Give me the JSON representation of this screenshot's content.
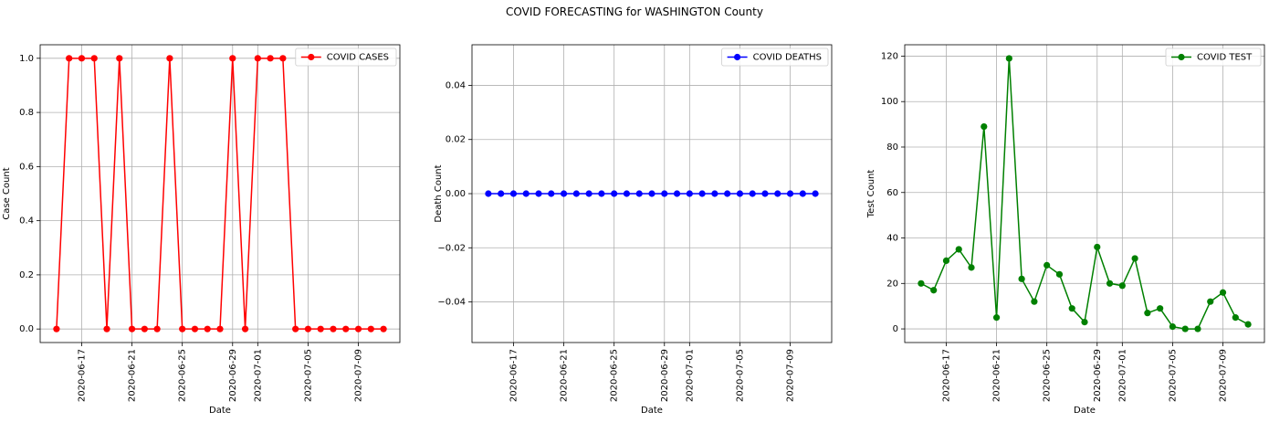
{
  "figure": {
    "title": "COVID FORECASTING for WASHINGTON County"
  },
  "chart_data": [
    {
      "type": "line",
      "title": "",
      "xlabel": "Date",
      "ylabel": "Case Count",
      "x": [
        "2020-06-15",
        "2020-06-16",
        "2020-06-17",
        "2020-06-18",
        "2020-06-19",
        "2020-06-20",
        "2020-06-21",
        "2020-06-22",
        "2020-06-23",
        "2020-06-24",
        "2020-06-25",
        "2020-06-26",
        "2020-06-27",
        "2020-06-28",
        "2020-06-29",
        "2020-06-30",
        "2020-07-01",
        "2020-07-02",
        "2020-07-03",
        "2020-07-04",
        "2020-07-05",
        "2020-07-06",
        "2020-07-07",
        "2020-07-08",
        "2020-07-09",
        "2020-07-10",
        "2020-07-11"
      ],
      "x_ticks": [
        "2020-06-17",
        "2020-06-21",
        "2020-06-25",
        "2020-06-29",
        "2020-07-01",
        "2020-07-05",
        "2020-07-09"
      ],
      "y_ticks": [
        "0.0",
        "0.2",
        "0.4",
        "0.6",
        "0.8",
        "1.0"
      ],
      "ylim": [
        -0.05,
        1.05
      ],
      "grid": true,
      "legend_position": "top-right",
      "series": [
        {
          "name": "COVID CASES",
          "color": "#ff0000",
          "values": [
            0,
            1,
            1,
            1,
            0,
            1,
            0,
            0,
            0,
            1,
            0,
            0,
            0,
            0,
            1,
            0,
            1,
            1,
            1,
            0,
            0,
            0,
            0,
            0,
            0,
            0,
            0
          ]
        }
      ]
    },
    {
      "type": "line",
      "title": "",
      "xlabel": "Date",
      "ylabel": "Death Count",
      "x": [
        "2020-06-15",
        "2020-06-16",
        "2020-06-17",
        "2020-06-18",
        "2020-06-19",
        "2020-06-20",
        "2020-06-21",
        "2020-06-22",
        "2020-06-23",
        "2020-06-24",
        "2020-06-25",
        "2020-06-26",
        "2020-06-27",
        "2020-06-28",
        "2020-06-29",
        "2020-06-30",
        "2020-07-01",
        "2020-07-02",
        "2020-07-03",
        "2020-07-04",
        "2020-07-05",
        "2020-07-06",
        "2020-07-07",
        "2020-07-08",
        "2020-07-09",
        "2020-07-10",
        "2020-07-11"
      ],
      "x_ticks": [
        "2020-06-17",
        "2020-06-21",
        "2020-06-25",
        "2020-06-29",
        "2020-07-01",
        "2020-07-05",
        "2020-07-09"
      ],
      "y_ticks": [
        "−0.04",
        "−0.02",
        "0.00",
        "0.02",
        "0.04"
      ],
      "y_tick_values": [
        -0.04,
        -0.02,
        0,
        0.02,
        0.04
      ],
      "ylim": [
        -0.055,
        0.055
      ],
      "grid": true,
      "legend_position": "top-right",
      "series": [
        {
          "name": "COVID DEATHS",
          "color": "#0000ff",
          "values": [
            0,
            0,
            0,
            0,
            0,
            0,
            0,
            0,
            0,
            0,
            0,
            0,
            0,
            0,
            0,
            0,
            0,
            0,
            0,
            0,
            0,
            0,
            0,
            0,
            0,
            0,
            0
          ]
        }
      ]
    },
    {
      "type": "line",
      "title": "",
      "xlabel": "Date",
      "ylabel": "Test Count",
      "x": [
        "2020-06-15",
        "2020-06-16",
        "2020-06-17",
        "2020-06-18",
        "2020-06-19",
        "2020-06-20",
        "2020-06-21",
        "2020-06-22",
        "2020-06-23",
        "2020-06-24",
        "2020-06-25",
        "2020-06-26",
        "2020-06-27",
        "2020-06-28",
        "2020-06-29",
        "2020-06-30",
        "2020-07-01",
        "2020-07-02",
        "2020-07-03",
        "2020-07-04",
        "2020-07-05",
        "2020-07-06",
        "2020-07-07",
        "2020-07-08",
        "2020-07-09",
        "2020-07-10",
        "2020-07-11"
      ],
      "x_ticks": [
        "2020-06-17",
        "2020-06-21",
        "2020-06-25",
        "2020-06-29",
        "2020-07-01",
        "2020-07-05",
        "2020-07-09"
      ],
      "y_ticks": [
        "0",
        "20",
        "40",
        "60",
        "80",
        "100",
        "120"
      ],
      "ylim": [
        -6,
        125
      ],
      "grid": true,
      "legend_position": "top-right",
      "series": [
        {
          "name": "COVID TEST",
          "color": "#008000",
          "values": [
            20,
            17,
            30,
            35,
            27,
            89,
            5,
            119,
            22,
            12,
            28,
            24,
            9,
            3,
            36,
            20,
            19,
            31,
            7,
            9,
            1,
            0,
            0,
            12,
            16,
            5,
            2
          ]
        }
      ]
    }
  ]
}
